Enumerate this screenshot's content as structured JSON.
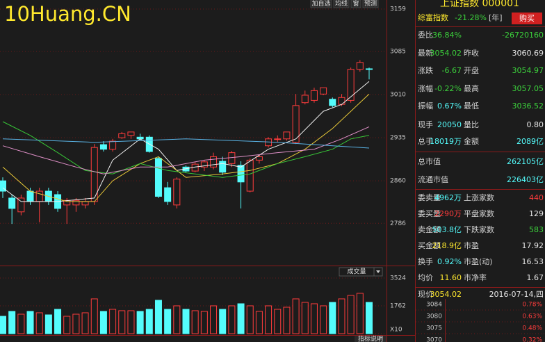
{
  "watermark": "10Huang.CN",
  "toolbar": [
    "加自选",
    "均线",
    "窗",
    "预测"
  ],
  "chart_data": [
    {
      "type": "candlestick",
      "ylim": [
        2715,
        3165
      ],
      "yticks": [
        3159,
        3085,
        3010,
        2935,
        2860,
        2786
      ],
      "grid": true,
      "up_color": "#ff3c3c",
      "down_color": "#54fcfc",
      "open": [
        2860,
        2830,
        2806,
        2842,
        2824,
        2842,
        2836,
        2818,
        2818,
        2818,
        2824,
        2923,
        2915,
        2935,
        2939,
        2936,
        2936,
        2899,
        2848,
        2818,
        2884,
        2877,
        2884,
        2884,
        2894,
        2890,
        2887,
        2842,
        2896,
        2921,
        2933,
        2933,
        2927,
        2996,
        3000,
        3011,
        3002,
        2993,
        3000,
        3054,
        3054.97
      ],
      "high": [
        2866,
        2836,
        2836,
        2848,
        2848,
        2848,
        2842,
        2830,
        2830,
        2830,
        2924,
        2929,
        2933,
        2945,
        2945,
        2942,
        2939,
        2902,
        2858,
        2866,
        2887,
        2893,
        2896,
        2909,
        2902,
        2912,
        2894,
        2899,
        2905,
        2936,
        2939,
        2945,
        3011,
        3017,
        3022,
        3022,
        3005,
        3011,
        3057,
        3070,
        3057.05
      ],
      "low": [
        2830,
        2785,
        2800,
        2818,
        2788,
        2818,
        2806,
        2785,
        2806,
        2812,
        2818,
        2911,
        2911,
        2933,
        2933,
        2930,
        2909,
        2830,
        2818,
        2812,
        2875,
        2875,
        2877,
        2880,
        2870,
        2884,
        2812,
        2840,
        2890,
        2918,
        2927,
        2930,
        2924,
        2993,
        2996,
        3009,
        2988,
        2990,
        2996,
        3050,
        3036.52
      ],
      "close": [
        2842,
        2812,
        2830,
        2824,
        2842,
        2824,
        2812,
        2826,
        2826,
        2824,
        2918,
        2915,
        2929,
        2942,
        2945,
        2933,
        2911,
        2833,
        2824,
        2863,
        2877,
        2889,
        2893,
        2902,
        2875,
        2909,
        2858,
        2896,
        2902,
        2933,
        2933,
        2945,
        2991,
        3009,
        3017,
        3022,
        2991,
        3005,
        3054,
        3066,
        3054.02
      ],
      "series": [
        {
          "color": "#f0f0f0",
          "x": [
            0,
            2,
            6,
            10,
            12,
            15,
            17,
            19,
            21,
            24,
            26,
            29,
            32,
            35,
            37,
            40
          ],
          "values": [
            2848,
            2824,
            2824,
            2830,
            2896,
            2933,
            2915,
            2878,
            2884,
            2890,
            2884,
            2915,
            2933,
            2981,
            2993,
            3033
          ]
        },
        {
          "color": "#e8c838",
          "x": [
            0,
            3,
            7,
            10,
            12,
            15,
            17,
            20,
            24,
            27,
            30,
            33,
            36,
            38,
            40
          ],
          "values": [
            2884,
            2842,
            2824,
            2824,
            2860,
            2890,
            2902,
            2866,
            2872,
            2878,
            2890,
            2915,
            2951,
            2981,
            3011
          ]
        },
        {
          "color": "#38c838",
          "x": [
            0,
            3,
            6,
            9,
            12,
            15,
            18,
            21,
            24,
            27,
            30,
            33,
            36,
            38,
            40
          ],
          "values": [
            2963,
            2939,
            2909,
            2878,
            2872,
            2890,
            2878,
            2872,
            2866,
            2872,
            2890,
            2902,
            2915,
            2933,
            2939
          ]
        },
        {
          "color": "#e090c8",
          "x": [
            0,
            4,
            8,
            11,
            15,
            18,
            22,
            26,
            30,
            34,
            37,
            40
          ],
          "values": [
            2921,
            2902,
            2884,
            2872,
            2884,
            2884,
            2896,
            2902,
            2909,
            2915,
            2933,
            2954
          ]
        },
        {
          "color": "#5ab4e6",
          "x": [
            0,
            10,
            20,
            30,
            40
          ],
          "values": [
            2933,
            2927,
            2933,
            2927,
            2917
          ]
        }
      ]
    },
    {
      "type": "bar",
      "title": "成交量",
      "ylim": [
        0,
        4050
      ],
      "yticks": [
        3524,
        1762,
        {
          "value": 0,
          "label": "X10"
        }
      ],
      "grid": true,
      "values": [
        1101,
        1410,
        1233,
        1410,
        1322,
        1189,
        1542,
        1101,
        1233,
        1322,
        2203,
        1410,
        1542,
        1454,
        1454,
        1410,
        1542,
        2114,
        1542,
        1762,
        1542,
        1454,
        1410,
        1762,
        1542,
        1762,
        1894,
        1762,
        1410,
        1762,
        1542,
        1674,
        2203,
        1982,
        1894,
        1762,
        1982,
        2203,
        2423,
        2555,
        1982
      ],
      "footer": "指标说明"
    }
  ],
  "quote": {
    "title": "上证指数 000001",
    "header": [
      "综富指数",
      "-21.28%",
      "[年]"
    ],
    "buy_button": "购买",
    "rows": [
      [
        "委比",
        "-36.84%",
        "-26720160"
      ],
      [
        "最新",
        "3054.02",
        "昨收",
        "3060.69"
      ],
      [
        "涨跌",
        "-6.67",
        "开盘",
        "3054.97"
      ],
      [
        "涨幅",
        "-0.22%",
        "最高",
        "3057.05"
      ],
      [
        "振幅",
        "0.67%",
        "最低",
        "3036.52"
      ],
      [
        "现手",
        "20050",
        "量比",
        "0.80"
      ],
      [
        "总手",
        "18019万",
        "金额",
        "2089亿"
      ],
      [
        "总市值",
        "262105亿"
      ],
      [
        "流通市值",
        "226403亿"
      ],
      [
        "委卖量",
        "4962万",
        "上涨家数",
        "440"
      ],
      [
        "委买量",
        "2290万",
        "平盘家数",
        "129"
      ],
      [
        "卖金额",
        "503.8亿",
        "下跌家数",
        "583"
      ],
      [
        "买金额",
        "218.9亿",
        "市盈",
        "17.92"
      ],
      [
        "换手",
        "0.92%",
        "市盈(动)",
        "16.53"
      ],
      [
        "均价",
        "11.60",
        "市净率",
        "1.67"
      ],
      [
        "现价",
        "3054.02",
        "2016-07-14,四"
      ]
    ],
    "depth": [
      [
        "3084",
        "0.78%"
      ],
      [
        "3080",
        "0.63%"
      ],
      [
        "3075",
        "0.48%"
      ],
      [
        "3070",
        "0.32%"
      ]
    ]
  }
}
